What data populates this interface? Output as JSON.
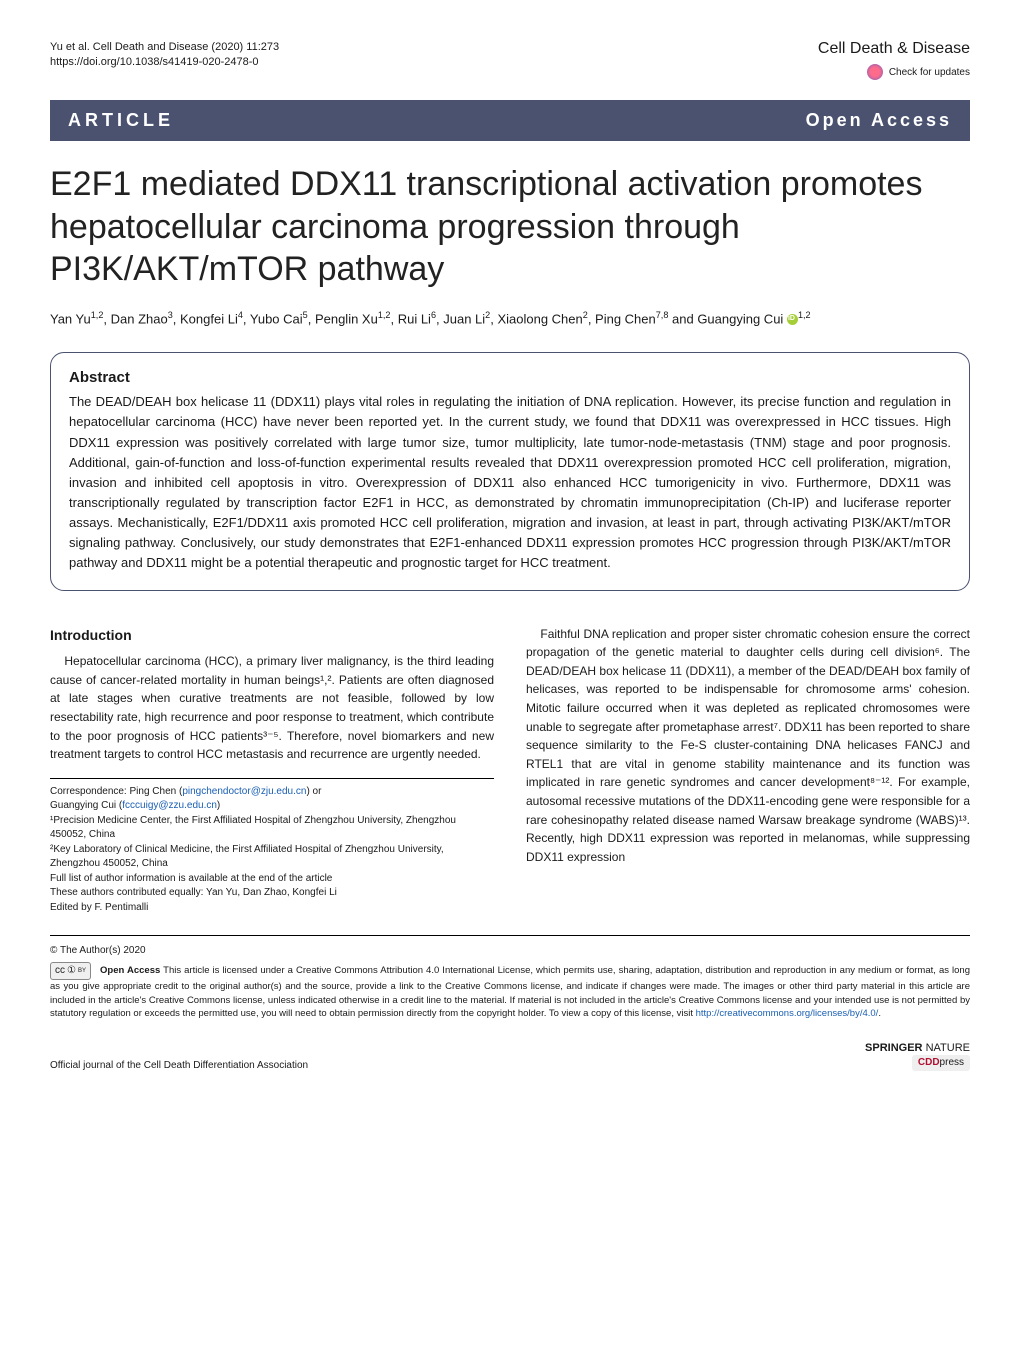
{
  "header": {
    "citation_line": "Yu et al. Cell Death and Disease                  (2020) 11:273",
    "doi_line": "https://doi.org/10.1038/s41419-020-2478-0",
    "journal": "Cell Death & Disease",
    "check_updates": "Check for updates"
  },
  "article_bar": {
    "label": "ARTICLE",
    "open_access": "Open Access"
  },
  "title": "E2F1 mediated DDX11 transcriptional activation promotes hepatocellular carcinoma progression through PI3K/AKT/mTOR pathway",
  "authors_html": "Yan Yu<sup>1,2</sup>, Dan Zhao<sup>3</sup>, Kongfei Li<sup>4</sup>, Yubo Cai<sup>5</sup>, Penglin Xu<sup>1,2</sup>, Rui Li<sup>6</sup>, Juan Li<sup>2</sup>, Xiaolong Chen<sup>2</sup>, Ping Chen<sup>7,8</sup> and Guangying Cui <span class=\"orcid\" data-name=\"orcid-icon\" data-interactable=\"false\"></span><sup>1,2</sup>",
  "abstract": {
    "heading": "Abstract",
    "text": "The DEAD/DEAH box helicase 11 (DDX11) plays vital roles in regulating the initiation of DNA replication. However, its precise function and regulation in hepatocellular carcinoma (HCC) have never been reported yet. In the current study, we found that DDX11 was overexpressed in HCC tissues. High DDX11 expression was positively correlated with large tumor size, tumor multiplicity, late tumor-node-metastasis (TNM) stage and poor prognosis. Additional, gain-of-function and loss-of-function experimental results revealed that DDX11 overexpression promoted HCC cell proliferation, migration, invasion and inhibited cell apoptosis in vitro. Overexpression of DDX11 also enhanced HCC tumorigenicity in vivo. Furthermore, DDX11 was transcriptionally regulated by transcription factor E2F1 in HCC, as demonstrated by chromatin immunoprecipitation (Ch-IP) and luciferase reporter assays. Mechanistically, E2F1/DDX11 axis promoted HCC cell proliferation, migration and invasion, at least in part, through activating PI3K/AKT/mTOR signaling pathway. Conclusively, our study demonstrates that E2F1-enhanced DDX11 expression promotes HCC progression through PI3K/AKT/mTOR pathway and DDX11 might be a potential therapeutic and prognostic target for HCC treatment."
  },
  "introduction": {
    "heading": "Introduction",
    "para1": "Hepatocellular carcinoma (HCC), a primary liver malignancy, is the third leading cause of cancer-related mortality in human beings¹,². Patients are often diagnosed at late stages when curative treatments are not feasible, followed by low resectability rate, high recurrence and poor response to treatment, which contribute to the poor prognosis of HCC patients³⁻⁵. Therefore, novel biomarkers and new treatment targets to control HCC metastasis and recurrence are urgently needed.",
    "para2": "Faithful DNA replication and proper sister chromatic cohesion ensure the correct propagation of the genetic material to daughter cells during cell division⁶. The DEAD/DEAH box helicase 11 (DDX11), a member of the DEAD/DEAH box family of helicases, was reported to be indispensable for chromosome arms' cohesion. Mitotic failure occurred when it was depleted as replicated chromosomes were unable to segregate after prometaphase arrest⁷. DDX11 has been reported to share sequence similarity to the Fe-S cluster-containing DNA helicases FANCJ and RTEL1 that are vital in genome stability maintenance and its function was implicated in rare genetic syndromes and cancer development⁸⁻¹². For example, autosomal recessive mutations of the DDX11-encoding gene were responsible for a rare cohesinopathy related disease named Warsaw breakage syndrome (WABS)¹³. Recently, high DDX11 expression was reported in melanomas, while suppressing DDX11 expression"
  },
  "correspondence": {
    "line1": "Correspondence: Ping Chen (",
    "email1": "pingchendoctor@zju.edu.cn",
    "line2": ") or",
    "line3": "Guangying Cui (",
    "email2": "fcccuigy@zzu.edu.cn",
    "line4": ")",
    "aff1": "¹Precision Medicine Center, the First Affiliated Hospital of Zhengzhou University, Zhengzhou 450052, China",
    "aff2": "²Key Laboratory of Clinical Medicine, the First Affiliated Hospital of Zhengzhou University, Zhengzhou 450052, China",
    "full_list": "Full list of author information is available at the end of the article",
    "equal": "These authors contributed equally: Yan Yu, Dan Zhao, Kongfei Li",
    "edited": "Edited by F. Pentimalli"
  },
  "copyright": {
    "line": "© The Author(s) 2020",
    "cc_label_cc": "cc",
    "cc_label_by": "①",
    "cc_label_sub": "BY",
    "oa_label": "Open Access",
    "text1": " This article is licensed under a Creative Commons Attribution 4.0 International License, which permits use, sharing, adaptation, distribution and reproduction in any medium or format, as long as you give appropriate credit to the original author(s) and the source, provide a link to the Creative Commons license, and indicate if changes were made. The images or other third party material in this article are included in the article's Creative Commons license, unless indicated otherwise in a credit line to the material. If material is not included in the article's Creative Commons license and your intended use is not permitted by statutory regulation or exceeds the permitted use, you will need to obtain permission directly from the copyright holder. To view a copy of this license, visit ",
    "url": "http://creativecommons.org/licenses/by/4.0/",
    "text2": "."
  },
  "footer": {
    "left": "Official journal of the Cell Death Differentiation Association",
    "springer": "SPRINGER",
    "nature": "NATURE",
    "cdd": "CDD",
    "press": "press"
  },
  "colors": {
    "bar_bg": "#4a5270",
    "link": "#1a5fb4",
    "orcid": "#a6ce39"
  }
}
